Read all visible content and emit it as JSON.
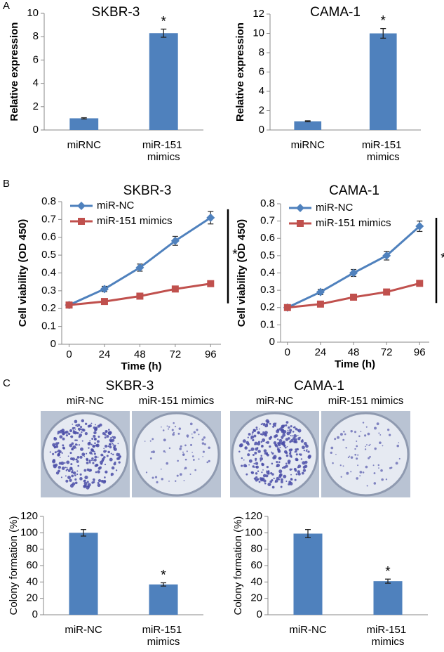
{
  "panel_labels": [
    "A",
    "B",
    "C"
  ],
  "chart_data": [
    {
      "type": "bar",
      "title": "SKBR-3",
      "ylabel": "Relative expression",
      "categories": [
        "miRNC",
        "miR-151 mimics"
      ],
      "values": [
        1,
        8.3
      ],
      "errors": [
        0.05,
        0.35
      ],
      "color": "#4f81bd",
      "ylim": [
        0,
        10
      ],
      "yticks": [
        0,
        2,
        4,
        6,
        8,
        10
      ],
      "annotation": "*"
    },
    {
      "type": "bar",
      "title": "CAMA-1",
      "ylabel": "Relative expression",
      "categories": [
        "miRNC",
        "miR-151 mimics"
      ],
      "values": [
        0.9,
        10
      ],
      "errors": [
        0.05,
        0.5
      ],
      "color": "#4f81bd",
      "ylim": [
        0,
        12
      ],
      "yticks": [
        0,
        2,
        4,
        6,
        8,
        10,
        12
      ],
      "annotation": "*"
    },
    {
      "type": "line",
      "title": "SKBR-3",
      "xlabel": "Time (h)",
      "ylabel": "Cell viability (OD 450)",
      "x": [
        0,
        24,
        48,
        72,
        96
      ],
      "xlim": [
        -5,
        103
      ],
      "xticks": [
        0,
        24,
        48,
        72,
        96
      ],
      "ylim": [
        0,
        0.8
      ],
      "yticks": [
        0,
        0.1,
        0.2,
        0.3,
        0.4,
        0.5,
        0.6,
        0.7,
        0.8
      ],
      "legend": "upper left",
      "annotation": "*",
      "series": [
        {
          "name": "miR-NC",
          "color": "#4f81bd",
          "marker": "diamond",
          "values": [
            0.22,
            0.31,
            0.43,
            0.58,
            0.71
          ],
          "errors": [
            0.01,
            0.015,
            0.02,
            0.025,
            0.035
          ]
        },
        {
          "name": "miR-151 mimics",
          "color": "#c0504d",
          "marker": "square",
          "values": [
            0.22,
            0.24,
            0.27,
            0.31,
            0.34
          ],
          "errors": [
            0.01,
            0.01,
            0.01,
            0.01,
            0.01
          ]
        }
      ]
    },
    {
      "type": "line",
      "title": "CAMA-1",
      "xlabel": "Time (h)",
      "ylabel": "Cell viability (OD 450)",
      "x": [
        0,
        24,
        48,
        72,
        96
      ],
      "xlim": [
        -5,
        103
      ],
      "xticks": [
        0,
        24,
        48,
        72,
        96
      ],
      "ylim": [
        0,
        0.8
      ],
      "yticks": [
        0,
        0.1,
        0.2,
        0.3,
        0.4,
        0.5,
        0.6,
        0.7,
        0.8
      ],
      "legend": "upper left",
      "annotation": "*",
      "series": [
        {
          "name": "miR-NC",
          "color": "#4f81bd",
          "marker": "diamond",
          "values": [
            0.2,
            0.29,
            0.4,
            0.5,
            0.67
          ],
          "errors": [
            0.01,
            0.015,
            0.02,
            0.025,
            0.03
          ]
        },
        {
          "name": "miR-151 mimics",
          "color": "#c0504d",
          "marker": "square",
          "values": [
            0.2,
            0.22,
            0.26,
            0.29,
            0.34
          ],
          "errors": [
            0.01,
            0.01,
            0.01,
            0.01,
            0.01
          ]
        }
      ]
    },
    {
      "type": "bar",
      "ylabel": "Colony formation (%)",
      "categories": [
        "miR-NC",
        "miR-151 mimics"
      ],
      "values": [
        100,
        37
      ],
      "errors": [
        4,
        2
      ],
      "color": "#4f81bd",
      "ylim": [
        0,
        120
      ],
      "yticks": [
        0,
        20,
        40,
        60,
        80,
        100,
        120
      ],
      "annotation": "*"
    },
    {
      "type": "bar",
      "ylabel": "Colony formation (%)",
      "categories": [
        "miR-NC",
        "miR-151 mimics"
      ],
      "values": [
        99,
        41
      ],
      "errors": [
        5,
        2.5
      ],
      "color": "#4f81bd",
      "ylim": [
        0,
        120
      ],
      "yticks": [
        0,
        20,
        40,
        60,
        80,
        100,
        120
      ],
      "annotation": "*"
    }
  ],
  "colony_images": [
    {
      "title": "SKBR-3",
      "labels": [
        "miR-NC",
        "miR-151 mimics"
      ]
    },
    {
      "title": "CAMA-1",
      "labels": [
        "miR-NC",
        "miR-151 mimics"
      ]
    }
  ]
}
